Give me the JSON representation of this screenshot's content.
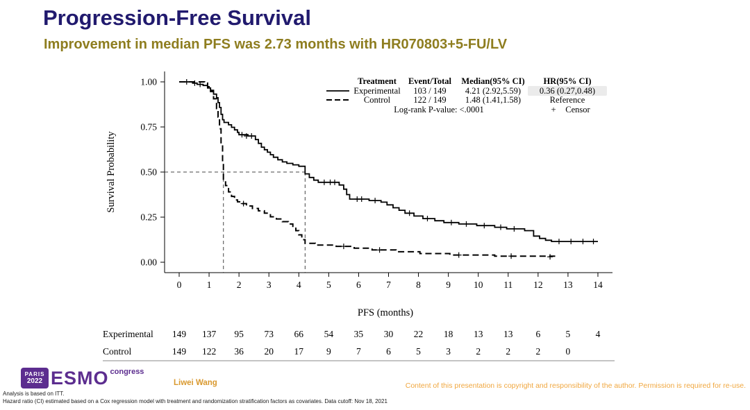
{
  "slide": {
    "title": "Progression-Free Survival",
    "subtitle": "Improvement in median PFS was 2.73 months with HR070803+5-FU/LV"
  },
  "colors": {
    "title": "#211a6e",
    "subtitle": "#8e7d1f",
    "author": "#d9992f",
    "copyright": "#f0a73f",
    "esmo_purple": "#5c2d8f",
    "curve": "#000000",
    "reference_line": "#444444"
  },
  "chart_data": {
    "type": "line",
    "subtype": "kaplan-meier",
    "title": "",
    "xlabel": "PFS (months)",
    "ylabel": "Survival Probability",
    "xlim": [
      0,
      14
    ],
    "ylim": [
      0,
      1
    ],
    "grid": false,
    "legend_position": "top-right",
    "xticks": [
      0,
      1,
      2,
      3,
      4,
      5,
      6,
      7,
      8,
      9,
      10,
      11,
      12,
      13,
      14
    ],
    "yticks": [
      0,
      0.25,
      0.5,
      0.75,
      1.0
    ],
    "ytick_labels": [
      "0.00",
      "0.25",
      "0.50",
      "0.75",
      "1.00"
    ],
    "reference": {
      "y": 0.5,
      "median_x": [
        1.48,
        4.21
      ]
    },
    "series": [
      {
        "name": "Experimental",
        "line": "solid",
        "points": [
          [
            0,
            1.0
          ],
          [
            0.45,
            0.993
          ],
          [
            0.6,
            0.986
          ],
          [
            0.8,
            0.98
          ],
          [
            0.95,
            0.966
          ],
          [
            1.05,
            0.953
          ],
          [
            1.15,
            0.932
          ],
          [
            1.25,
            0.912
          ],
          [
            1.3,
            0.885
          ],
          [
            1.35,
            0.858
          ],
          [
            1.4,
            0.82
          ],
          [
            1.45,
            0.79
          ],
          [
            1.5,
            0.775
          ],
          [
            1.65,
            0.762
          ],
          [
            1.75,
            0.748
          ],
          [
            1.85,
            0.734
          ],
          [
            1.95,
            0.72
          ],
          [
            2.0,
            0.707
          ],
          [
            2.3,
            0.7
          ],
          [
            2.55,
            0.68
          ],
          [
            2.65,
            0.659
          ],
          [
            2.75,
            0.638
          ],
          [
            2.85,
            0.624
          ],
          [
            2.95,
            0.61
          ],
          [
            3.05,
            0.596
          ],
          [
            3.15,
            0.582
          ],
          [
            3.3,
            0.568
          ],
          [
            3.45,
            0.556
          ],
          [
            3.6,
            0.548
          ],
          [
            3.8,
            0.54
          ],
          [
            4.0,
            0.532
          ],
          [
            4.21,
            0.49
          ],
          [
            4.35,
            0.47
          ],
          [
            4.5,
            0.455
          ],
          [
            4.65,
            0.443
          ],
          [
            5.35,
            0.428
          ],
          [
            5.5,
            0.405
          ],
          [
            5.6,
            0.375
          ],
          [
            5.7,
            0.35
          ],
          [
            6.35,
            0.342
          ],
          [
            6.75,
            0.333
          ],
          [
            6.95,
            0.318
          ],
          [
            7.15,
            0.302
          ],
          [
            7.35,
            0.288
          ],
          [
            7.55,
            0.272
          ],
          [
            7.85,
            0.256
          ],
          [
            8.15,
            0.242
          ],
          [
            8.55,
            0.23
          ],
          [
            8.85,
            0.22
          ],
          [
            9.35,
            0.212
          ],
          [
            9.95,
            0.203
          ],
          [
            10.55,
            0.194
          ],
          [
            10.95,
            0.185
          ],
          [
            11.55,
            0.175
          ],
          [
            11.85,
            0.145
          ],
          [
            12.05,
            0.132
          ],
          [
            12.25,
            0.122
          ],
          [
            12.45,
            0.115
          ],
          [
            14.0,
            0.115
          ]
        ],
        "censors": [
          [
            0.25,
            1.0
          ],
          [
            0.52,
            0.993
          ],
          [
            0.7,
            0.986
          ],
          [
            2.1,
            0.707
          ],
          [
            2.25,
            0.7
          ],
          [
            2.42,
            0.7
          ],
          [
            4.85,
            0.443
          ],
          [
            5.05,
            0.443
          ],
          [
            5.2,
            0.443
          ],
          [
            5.95,
            0.35
          ],
          [
            6.1,
            0.35
          ],
          [
            6.55,
            0.342
          ],
          [
            7.7,
            0.272
          ],
          [
            8.3,
            0.242
          ],
          [
            9.1,
            0.22
          ],
          [
            9.6,
            0.212
          ],
          [
            10.2,
            0.203
          ],
          [
            10.75,
            0.194
          ],
          [
            11.2,
            0.185
          ],
          [
            12.7,
            0.115
          ],
          [
            13.1,
            0.115
          ],
          [
            13.5,
            0.115
          ],
          [
            13.85,
            0.115
          ]
        ]
      },
      {
        "name": "Control",
        "line": "dashed",
        "points": [
          [
            0,
            1.0
          ],
          [
            0.85,
            0.993
          ],
          [
            0.95,
            0.973
          ],
          [
            1.05,
            0.946
          ],
          [
            1.15,
            0.906
          ],
          [
            1.25,
            0.852
          ],
          [
            1.3,
            0.805
          ],
          [
            1.35,
            0.74
          ],
          [
            1.4,
            0.65
          ],
          [
            1.45,
            0.55
          ],
          [
            1.48,
            0.46
          ],
          [
            1.55,
            0.425
          ],
          [
            1.65,
            0.39
          ],
          [
            1.75,
            0.365
          ],
          [
            1.85,
            0.345
          ],
          [
            1.95,
            0.335
          ],
          [
            2.05,
            0.325
          ],
          [
            2.25,
            0.312
          ],
          [
            2.45,
            0.298
          ],
          [
            2.65,
            0.285
          ],
          [
            2.85,
            0.272
          ],
          [
            3.05,
            0.252
          ],
          [
            3.25,
            0.24
          ],
          [
            3.45,
            0.225
          ],
          [
            3.65,
            0.212
          ],
          [
            3.8,
            0.195
          ],
          [
            3.9,
            0.175
          ],
          [
            4.0,
            0.152
          ],
          [
            4.1,
            0.125
          ],
          [
            4.21,
            0.105
          ],
          [
            4.55,
            0.095
          ],
          [
            5.25,
            0.088
          ],
          [
            5.85,
            0.078
          ],
          [
            6.45,
            0.068
          ],
          [
            7.25,
            0.058
          ],
          [
            8.05,
            0.048
          ],
          [
            9.05,
            0.04
          ],
          [
            10.55,
            0.034
          ],
          [
            12.55,
            0.03
          ]
        ],
        "censors": [
          [
            2.15,
            0.325
          ],
          [
            5.5,
            0.088
          ],
          [
            6.7,
            0.068
          ],
          [
            9.35,
            0.04
          ],
          [
            11.1,
            0.034
          ],
          [
            12.4,
            0.03
          ]
        ]
      }
    ],
    "legend_table": {
      "headers": [
        "Treatment",
        "Event/Total",
        "Median(95% CI)",
        "HR(95% CI)"
      ],
      "rows": [
        {
          "treatment": "Experimental",
          "event_total": "103 / 149",
          "median": "4.21 (2.92,5.59)",
          "hr": "0.36 (0.27,0.48)",
          "line": "solid",
          "hr_highlight": true
        },
        {
          "treatment": "Control",
          "event_total": "122 / 149",
          "median": "1.48 (1.41,1.58)",
          "hr": "Reference",
          "line": "dashed",
          "hr_highlight": false
        }
      ],
      "logrank": "Log-rank P-value: <.0001",
      "censor_symbol": "+",
      "censor_label": "Censor"
    },
    "risk_table": {
      "rows": [
        {
          "label": "Experimental",
          "counts": [
            149,
            137,
            95,
            73,
            66,
            54,
            35,
            30,
            22,
            18,
            13,
            13,
            6,
            5,
            4
          ]
        },
        {
          "label": "Control",
          "counts": [
            149,
            122,
            36,
            20,
            17,
            9,
            7,
            6,
            5,
            3,
            2,
            2,
            2,
            0
          ]
        }
      ]
    }
  },
  "footer": {
    "logo": {
      "paris": "PARIS",
      "year": "2022",
      "esmo": "ESMO",
      "congress": "congress"
    },
    "author": "Liwei Wang",
    "copyright": "Content of this presentation is copyright and responsibility of the author. Permission is required for re-use.",
    "note1": "Analysis is based on ITT.",
    "note2": "Hazard ratio (CI) estimated based on a Cox regression model with treatment and randomization stratification factors as covariates. Data cutoff: Nov 18, 2021"
  }
}
